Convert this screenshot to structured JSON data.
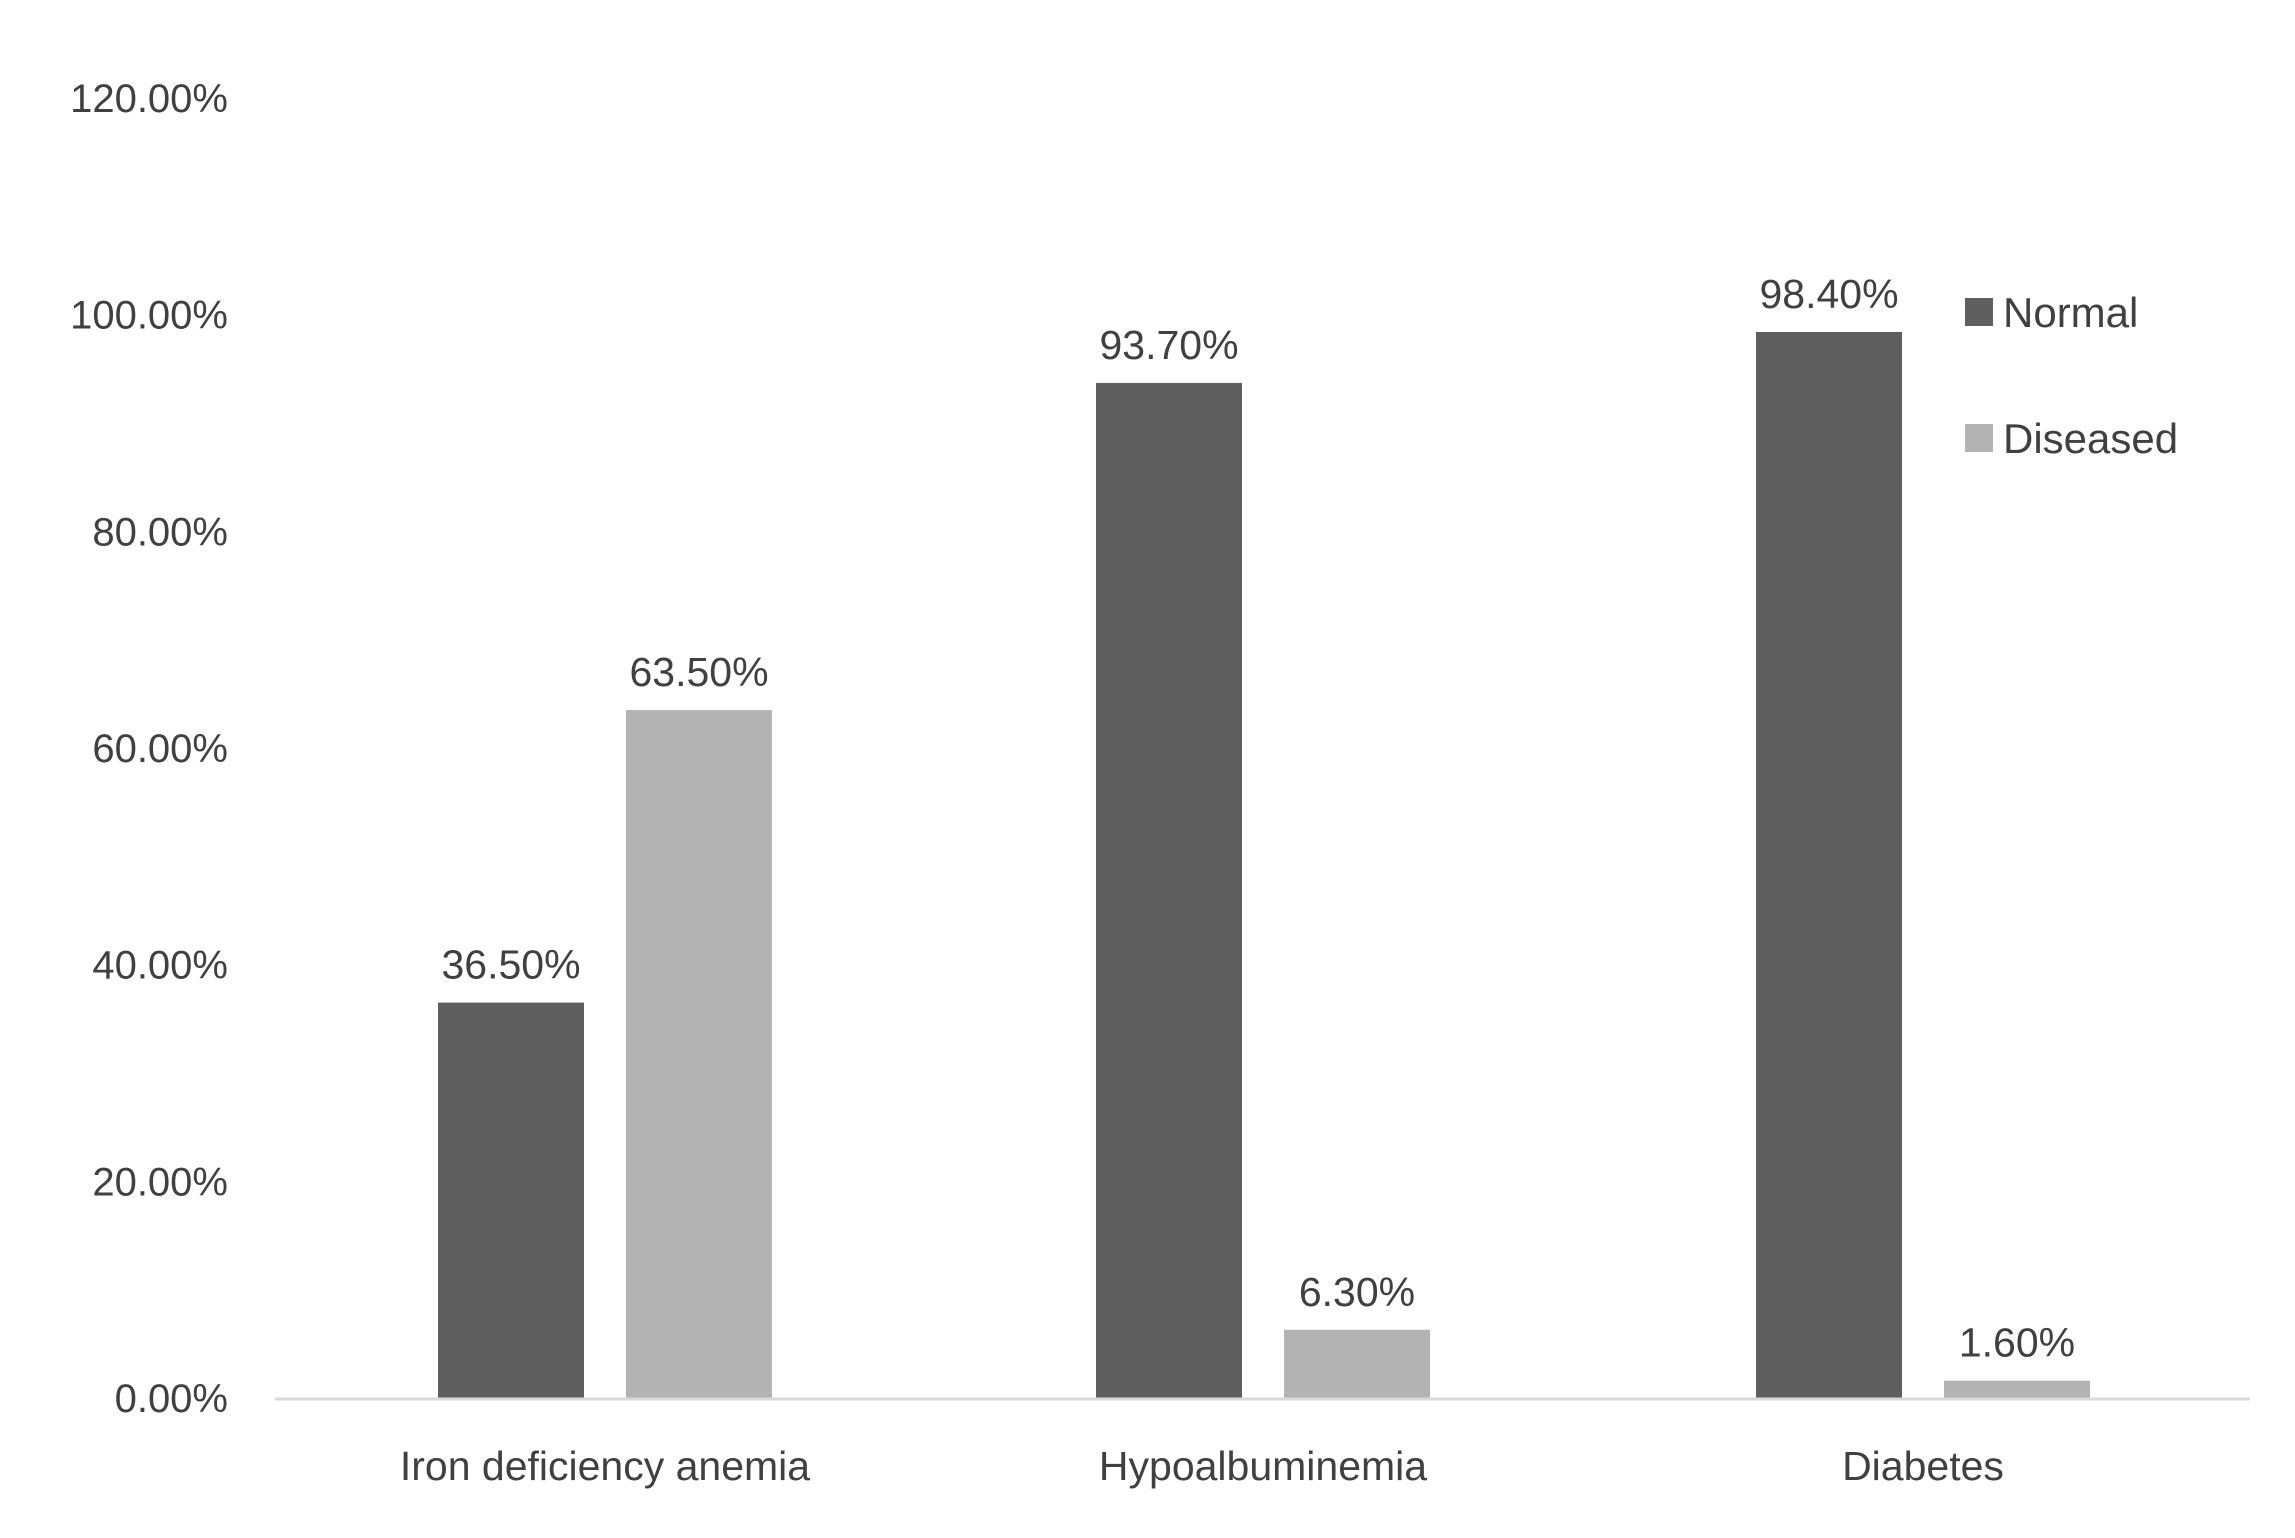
{
  "chart_data": {
    "type": "bar",
    "title": "",
    "xlabel": "",
    "ylabel": "",
    "categories": [
      "Iron deficiency anemia",
      "Hypoalbuminemia",
      "Diabetes"
    ],
    "series": [
      {
        "name": "Normal",
        "color": "#5f5f5f",
        "values": [
          36.5,
          93.7,
          98.4
        ],
        "labels": [
          "36.50%",
          "93.70%",
          "98.40%"
        ]
      },
      {
        "name": "Diseased",
        "color": "#b3b3b3",
        "values": [
          63.5,
          6.3,
          1.6
        ],
        "labels": [
          "63.50%",
          "6.30%",
          "1.60%"
        ]
      }
    ],
    "ylim": [
      0,
      120
    ],
    "y_ticks": [
      0,
      20,
      40,
      60,
      80,
      100,
      120
    ],
    "y_tick_labels": [
      "0.00%",
      "20.00%",
      "40.00%",
      "60.00%",
      "80.00%",
      "100.00%",
      "120.00%"
    ],
    "grid": false,
    "legend": {
      "position": "top-right",
      "entries": [
        "Normal",
        "Diseased"
      ]
    },
    "axis_color": "#d9d9d9"
  }
}
